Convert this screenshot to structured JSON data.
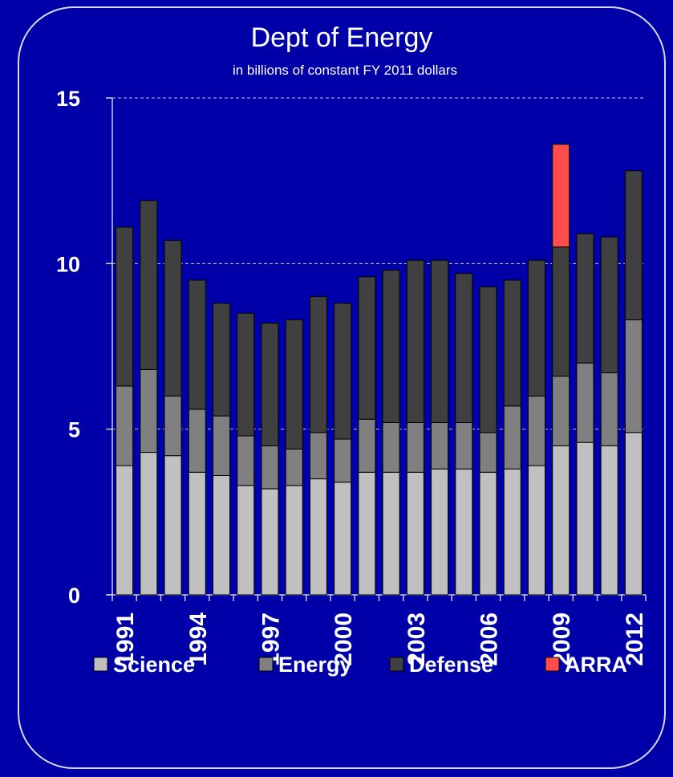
{
  "chart_data": {
    "type": "bar",
    "stacked": true,
    "title": "Dept of Energy",
    "subtitle": "in billions of constant FY 2011 dollars",
    "xlabel": "",
    "ylabel": "",
    "ylim": [
      0,
      15
    ],
    "yticks": [
      0,
      5,
      10,
      15
    ],
    "gridlines": "dashed horizontal",
    "legend_position": "bottom",
    "categories": [
      "1991",
      "1992",
      "1993",
      "1994",
      "1995",
      "1996",
      "1997",
      "1998",
      "1999",
      "2000",
      "2001",
      "2002",
      "2003",
      "2004",
      "2005",
      "2006",
      "2007",
      "2008",
      "2009",
      "2010",
      "2011",
      "2012"
    ],
    "xtick_labels": [
      "1991",
      "1994",
      "1997",
      "2000",
      "2003",
      "2006",
      "2009",
      "2012"
    ],
    "series": [
      {
        "name": "Science",
        "color": "#c0c0c0",
        "values": [
          3.9,
          4.3,
          4.2,
          3.7,
          3.6,
          3.3,
          3.2,
          3.3,
          3.5,
          3.4,
          3.7,
          3.7,
          3.7,
          3.8,
          3.8,
          3.7,
          3.8,
          3.9,
          4.5,
          4.6,
          4.5,
          4.9
        ]
      },
      {
        "name": "Energy",
        "color": "#808080",
        "values": [
          2.4,
          2.5,
          1.8,
          1.9,
          1.8,
          1.5,
          1.3,
          1.1,
          1.4,
          1.3,
          1.6,
          1.5,
          1.5,
          1.4,
          1.4,
          1.2,
          1.9,
          2.1,
          2.1,
          2.4,
          2.2,
          3.4
        ]
      },
      {
        "name": "Defense",
        "color": "#404040",
        "values": [
          4.8,
          5.1,
          4.7,
          3.9,
          3.4,
          3.7,
          3.7,
          3.9,
          4.1,
          4.1,
          4.3,
          4.6,
          4.9,
          4.9,
          4.5,
          4.4,
          3.8,
          4.1,
          3.9,
          3.9,
          4.1,
          4.5
        ]
      },
      {
        "name": "ARRA",
        "color": "#ff4d4d",
        "values": [
          0,
          0,
          0,
          0,
          0,
          0,
          0,
          0,
          0,
          0,
          0,
          0,
          0,
          0,
          0,
          0,
          0,
          0,
          3.1,
          0,
          0,
          0
        ]
      }
    ]
  }
}
